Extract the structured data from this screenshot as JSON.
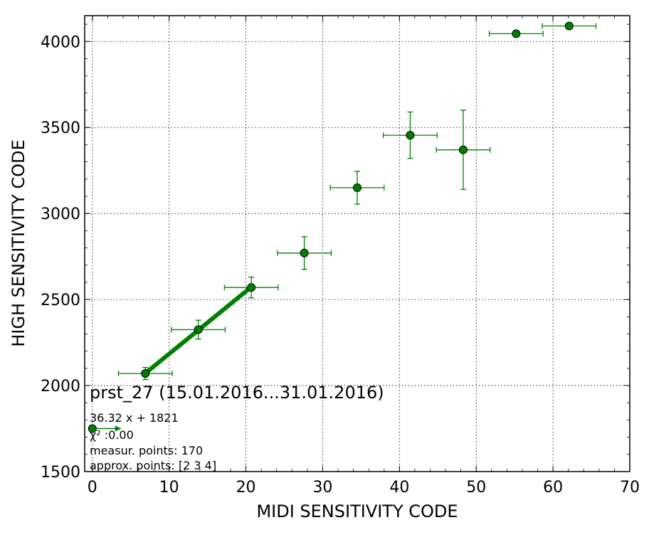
{
  "chart_data": {
    "type": "scatter",
    "title": "prst_27 (15.01.2016...31.01.2016)",
    "xlabel": "MIDI SENSITIVITY CODE",
    "ylabel": "HIGH SENSITIVITY CODE",
    "xlim": [
      -1,
      70
    ],
    "ylim": [
      1500,
      4150
    ],
    "xticks": [
      0,
      10,
      20,
      30,
      40,
      50,
      60,
      70
    ],
    "yticks": [
      1500,
      2000,
      2500,
      3000,
      3500,
      4000
    ],
    "grid": true,
    "marker_color": "#008000",
    "series": [
      {
        "points": [
          {
            "x": 6.9,
            "y": 2070,
            "xerr": 3.5,
            "yerr": 35
          },
          {
            "x": 13.8,
            "y": 2325,
            "xerr": 3.5,
            "yerr": 55
          },
          {
            "x": 20.7,
            "y": 2570,
            "xerr": 3.5,
            "yerr": 60
          },
          {
            "x": 27.6,
            "y": 2770,
            "xerr": 3.5,
            "yerr": 95
          },
          {
            "x": 34.5,
            "y": 3150,
            "xerr": 3.5,
            "yerr": 95
          },
          {
            "x": 41.4,
            "y": 3455,
            "xerr": 3.5,
            "yerr": 135
          },
          {
            "x": 48.3,
            "y": 3370,
            "xerr": 3.5,
            "yerr": 230
          },
          {
            "x": 55.2,
            "y": 4045,
            "xerr": 3.5,
            "yerr": 15
          },
          {
            "x": 62.1,
            "y": 4090,
            "xerr": 3.5,
            "yerr": 10
          }
        ]
      }
    ],
    "fit": {
      "x": [
        6.9,
        20.7
      ],
      "y": [
        2071.6,
        2572.8
      ],
      "color": "#008000"
    },
    "annotations": {
      "equation": "36.32 x + 1821",
      "chi2": "χ² :0.00",
      "points": "measur. points: 170",
      "approx": "approx. points: [2 3 4]"
    },
    "legend_marker": {
      "x": 0,
      "y": 1750,
      "arrow_to": 3.8
    }
  }
}
